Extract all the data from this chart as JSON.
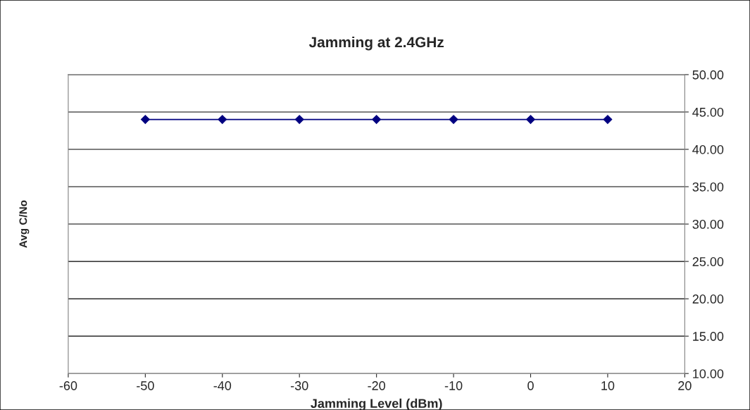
{
  "chart_data": {
    "type": "line",
    "title": "Jamming at 2.4GHz",
    "xlabel": "Jamming Level (dBm)",
    "ylabel": "Avg C/No",
    "x": [
      -50,
      -40,
      -30,
      -20,
      -10,
      0,
      10
    ],
    "series": [
      {
        "color": "#000080",
        "values": [
          44,
          44,
          44,
          44,
          44,
          44,
          44
        ]
      }
    ],
    "xlim": [
      -60,
      20
    ],
    "xticks": [
      -60,
      -50,
      -40,
      -30,
      -20,
      -10,
      0,
      10,
      20
    ],
    "ylim": [
      10,
      50
    ],
    "yticks": [
      {
        "value": 10,
        "label": "10.00"
      },
      {
        "value": 15,
        "label": "15.00"
      },
      {
        "value": 20,
        "label": "20.00"
      },
      {
        "value": 25,
        "label": "25.00"
      },
      {
        "value": 30,
        "label": "30.00"
      },
      {
        "value": 35,
        "label": "35.00"
      },
      {
        "value": 40,
        "label": "40.00"
      },
      {
        "value": 45,
        "label": "45.00"
      },
      {
        "value": 50,
        "label": "50.00"
      }
    ],
    "grid": "y",
    "marker": "diamond",
    "line_style": "solid"
  }
}
